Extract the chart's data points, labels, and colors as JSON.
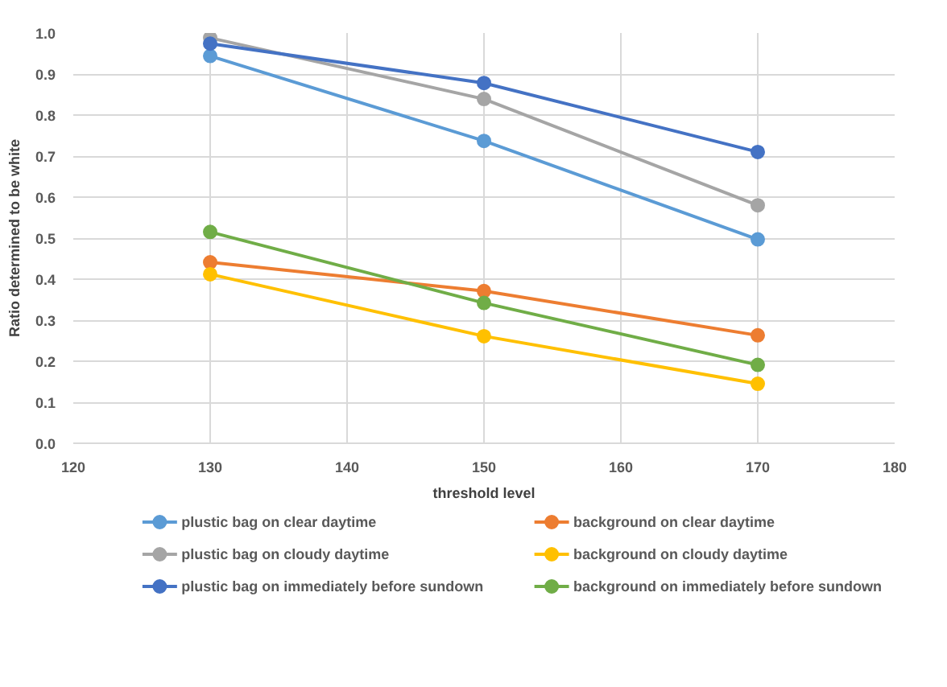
{
  "chart_data": {
    "type": "line",
    "xlabel": "threshold level",
    "ylabel": "Ratio determined to be white",
    "x": [
      130,
      150,
      170
    ],
    "xlim": [
      120,
      180
    ],
    "xticks": [
      120,
      130,
      140,
      150,
      160,
      170,
      180
    ],
    "ylim": [
      0,
      1
    ],
    "yticks": [
      {
        "value": 0,
        "label": "0.0"
      },
      {
        "value": 0.1,
        "label": "0.1"
      },
      {
        "value": 0.2,
        "label": "0.2"
      },
      {
        "value": 0.3,
        "label": "0.3"
      },
      {
        "value": 0.4,
        "label": "0.4"
      },
      {
        "value": 0.5,
        "label": "0.5"
      },
      {
        "value": 0.6,
        "label": "0.6"
      },
      {
        "value": 0.7,
        "label": "0.7"
      },
      {
        "value": 0.8,
        "label": "0.8"
      },
      {
        "value": 0.9,
        "label": "0.9"
      },
      {
        "value": 1,
        "label": "1.0"
      }
    ],
    "grid": true,
    "legend": "bottom",
    "marker": "circle",
    "line_style": "solid",
    "series": [
      {
        "name": "plustic bag on clear daytime",
        "color": "#5b9bd5",
        "values": [
          0.944,
          0.737,
          0.497
        ]
      },
      {
        "name": "background on clear daytime",
        "color": "#ed7d31",
        "values": [
          0.441,
          0.371,
          0.263
        ]
      },
      {
        "name": "plustic bag on cloudy daytime",
        "color": "#a5a5a5",
        "values": [
          0.988,
          0.839,
          0.58
        ]
      },
      {
        "name": "background on cloudy daytime",
        "color": "#ffc000",
        "values": [
          0.412,
          0.261,
          0.145
        ]
      },
      {
        "name": "plustic bag on immediately before sundown",
        "color": "#4472c4",
        "values": [
          0.974,
          0.878,
          0.71
        ]
      },
      {
        "name": "background on immediately before sundown",
        "color": "#70ad47",
        "values": [
          0.515,
          0.342,
          0.191
        ]
      }
    ]
  }
}
